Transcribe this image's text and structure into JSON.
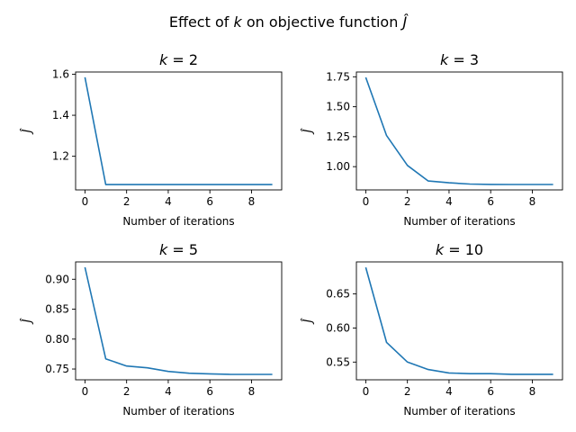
{
  "figure": {
    "suptitle_prefix": "Effect of ",
    "suptitle_var": "k",
    "suptitle_suffix": " on objective function ",
    "suptitle_symbol": "Ĵ"
  },
  "chart_data": [
    {
      "type": "line",
      "title_var": "k",
      "title_rest": " = 2",
      "xlabel": "Number of iterations",
      "ylabel": "Ĵ",
      "x": [
        0,
        1,
        2,
        3,
        4,
        5,
        6,
        7,
        8,
        9
      ],
      "values": [
        1.585,
        1.062,
        1.062,
        1.062,
        1.062,
        1.062,
        1.062,
        1.062,
        1.062,
        1.062
      ],
      "xlim": [
        -0.45,
        9.45
      ],
      "ylim": [
        1.036,
        1.611
      ],
      "xticks": [
        0,
        2,
        4,
        6,
        8
      ],
      "yticks": [
        1.2,
        1.4,
        1.6
      ],
      "ytick_labels": [
        "1.2",
        "1.4",
        "1.6"
      ],
      "color": "#1f77b4",
      "grid": false
    },
    {
      "type": "line",
      "title_var": "k",
      "title_rest": " = 3",
      "xlabel": "Number of iterations",
      "ylabel": "Ĵ",
      "x": [
        0,
        1,
        2,
        3,
        4,
        5,
        6,
        7,
        8,
        9
      ],
      "values": [
        1.745,
        1.26,
        1.01,
        0.88,
        0.865,
        0.855,
        0.852,
        0.851,
        0.851,
        0.851
      ],
      "xlim": [
        -0.45,
        9.45
      ],
      "ylim": [
        0.806,
        1.79
      ],
      "xticks": [
        0,
        2,
        4,
        6,
        8
      ],
      "yticks": [
        1.0,
        1.25,
        1.5,
        1.75
      ],
      "ytick_labels": [
        "1.00",
        "1.25",
        "1.50",
        "1.75"
      ],
      "color": "#1f77b4",
      "grid": false
    },
    {
      "type": "line",
      "title_var": "k",
      "title_rest": " = 5",
      "xlabel": "Number of iterations",
      "ylabel": "Ĵ",
      "x": [
        0,
        1,
        2,
        3,
        4,
        5,
        6,
        7,
        8,
        9
      ],
      "values": [
        0.92,
        0.767,
        0.755,
        0.752,
        0.746,
        0.743,
        0.742,
        0.741,
        0.741,
        0.741
      ],
      "xlim": [
        -0.45,
        9.45
      ],
      "ylim": [
        0.732,
        0.929
      ],
      "xticks": [
        0,
        2,
        4,
        6,
        8
      ],
      "yticks": [
        0.75,
        0.8,
        0.85,
        0.9
      ],
      "ytick_labels": [
        "0.75",
        "0.80",
        "0.85",
        "0.90"
      ],
      "color": "#1f77b4",
      "grid": false
    },
    {
      "type": "line",
      "title_var": "k",
      "title_rest": " = 10",
      "xlabel": "Number of iterations",
      "ylabel": "Ĵ",
      "x": [
        0,
        1,
        2,
        3,
        4,
        5,
        6,
        7,
        8,
        9
      ],
      "values": [
        0.689,
        0.579,
        0.55,
        0.539,
        0.534,
        0.533,
        0.533,
        0.532,
        0.532,
        0.532
      ],
      "xlim": [
        -0.45,
        9.45
      ],
      "ylim": [
        0.524,
        0.697
      ],
      "xticks": [
        0,
        2,
        4,
        6,
        8
      ],
      "yticks": [
        0.55,
        0.6,
        0.65
      ],
      "ytick_labels": [
        "0.55",
        "0.60",
        "0.65"
      ],
      "color": "#1f77b4",
      "grid": false
    }
  ]
}
